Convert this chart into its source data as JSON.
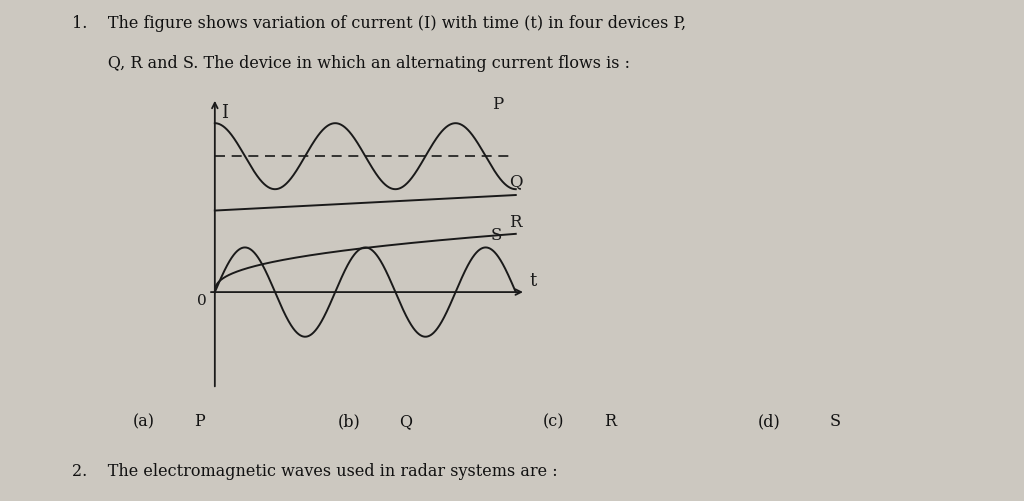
{
  "background_color": "#ccc8c0",
  "title_line1": "1.    The figure shows variation of current (I) with time (t) in four devices P,",
  "title_line2": "       Q, R and S. The device in which an alternating current flows is :",
  "answer_a": "(a)",
  "answer_a_val": "P",
  "answer_b": "(b)",
  "answer_b_val": "Q",
  "answer_c": "(c)",
  "answer_c_val": "R",
  "answer_d": "(d)",
  "answer_d_val": "S",
  "question2_text": "2.    The electromagnetic waves used in radar systems are :",
  "axis_label_I": "I",
  "axis_label_t": "t",
  "axis_label_0": "0",
  "curve_color": "#1a1a1a",
  "label_P": "P",
  "label_Q": "Q",
  "label_R": "R",
  "label_S": "S",
  "fig_width": 10.24,
  "fig_height": 5.01,
  "dpi": 100
}
